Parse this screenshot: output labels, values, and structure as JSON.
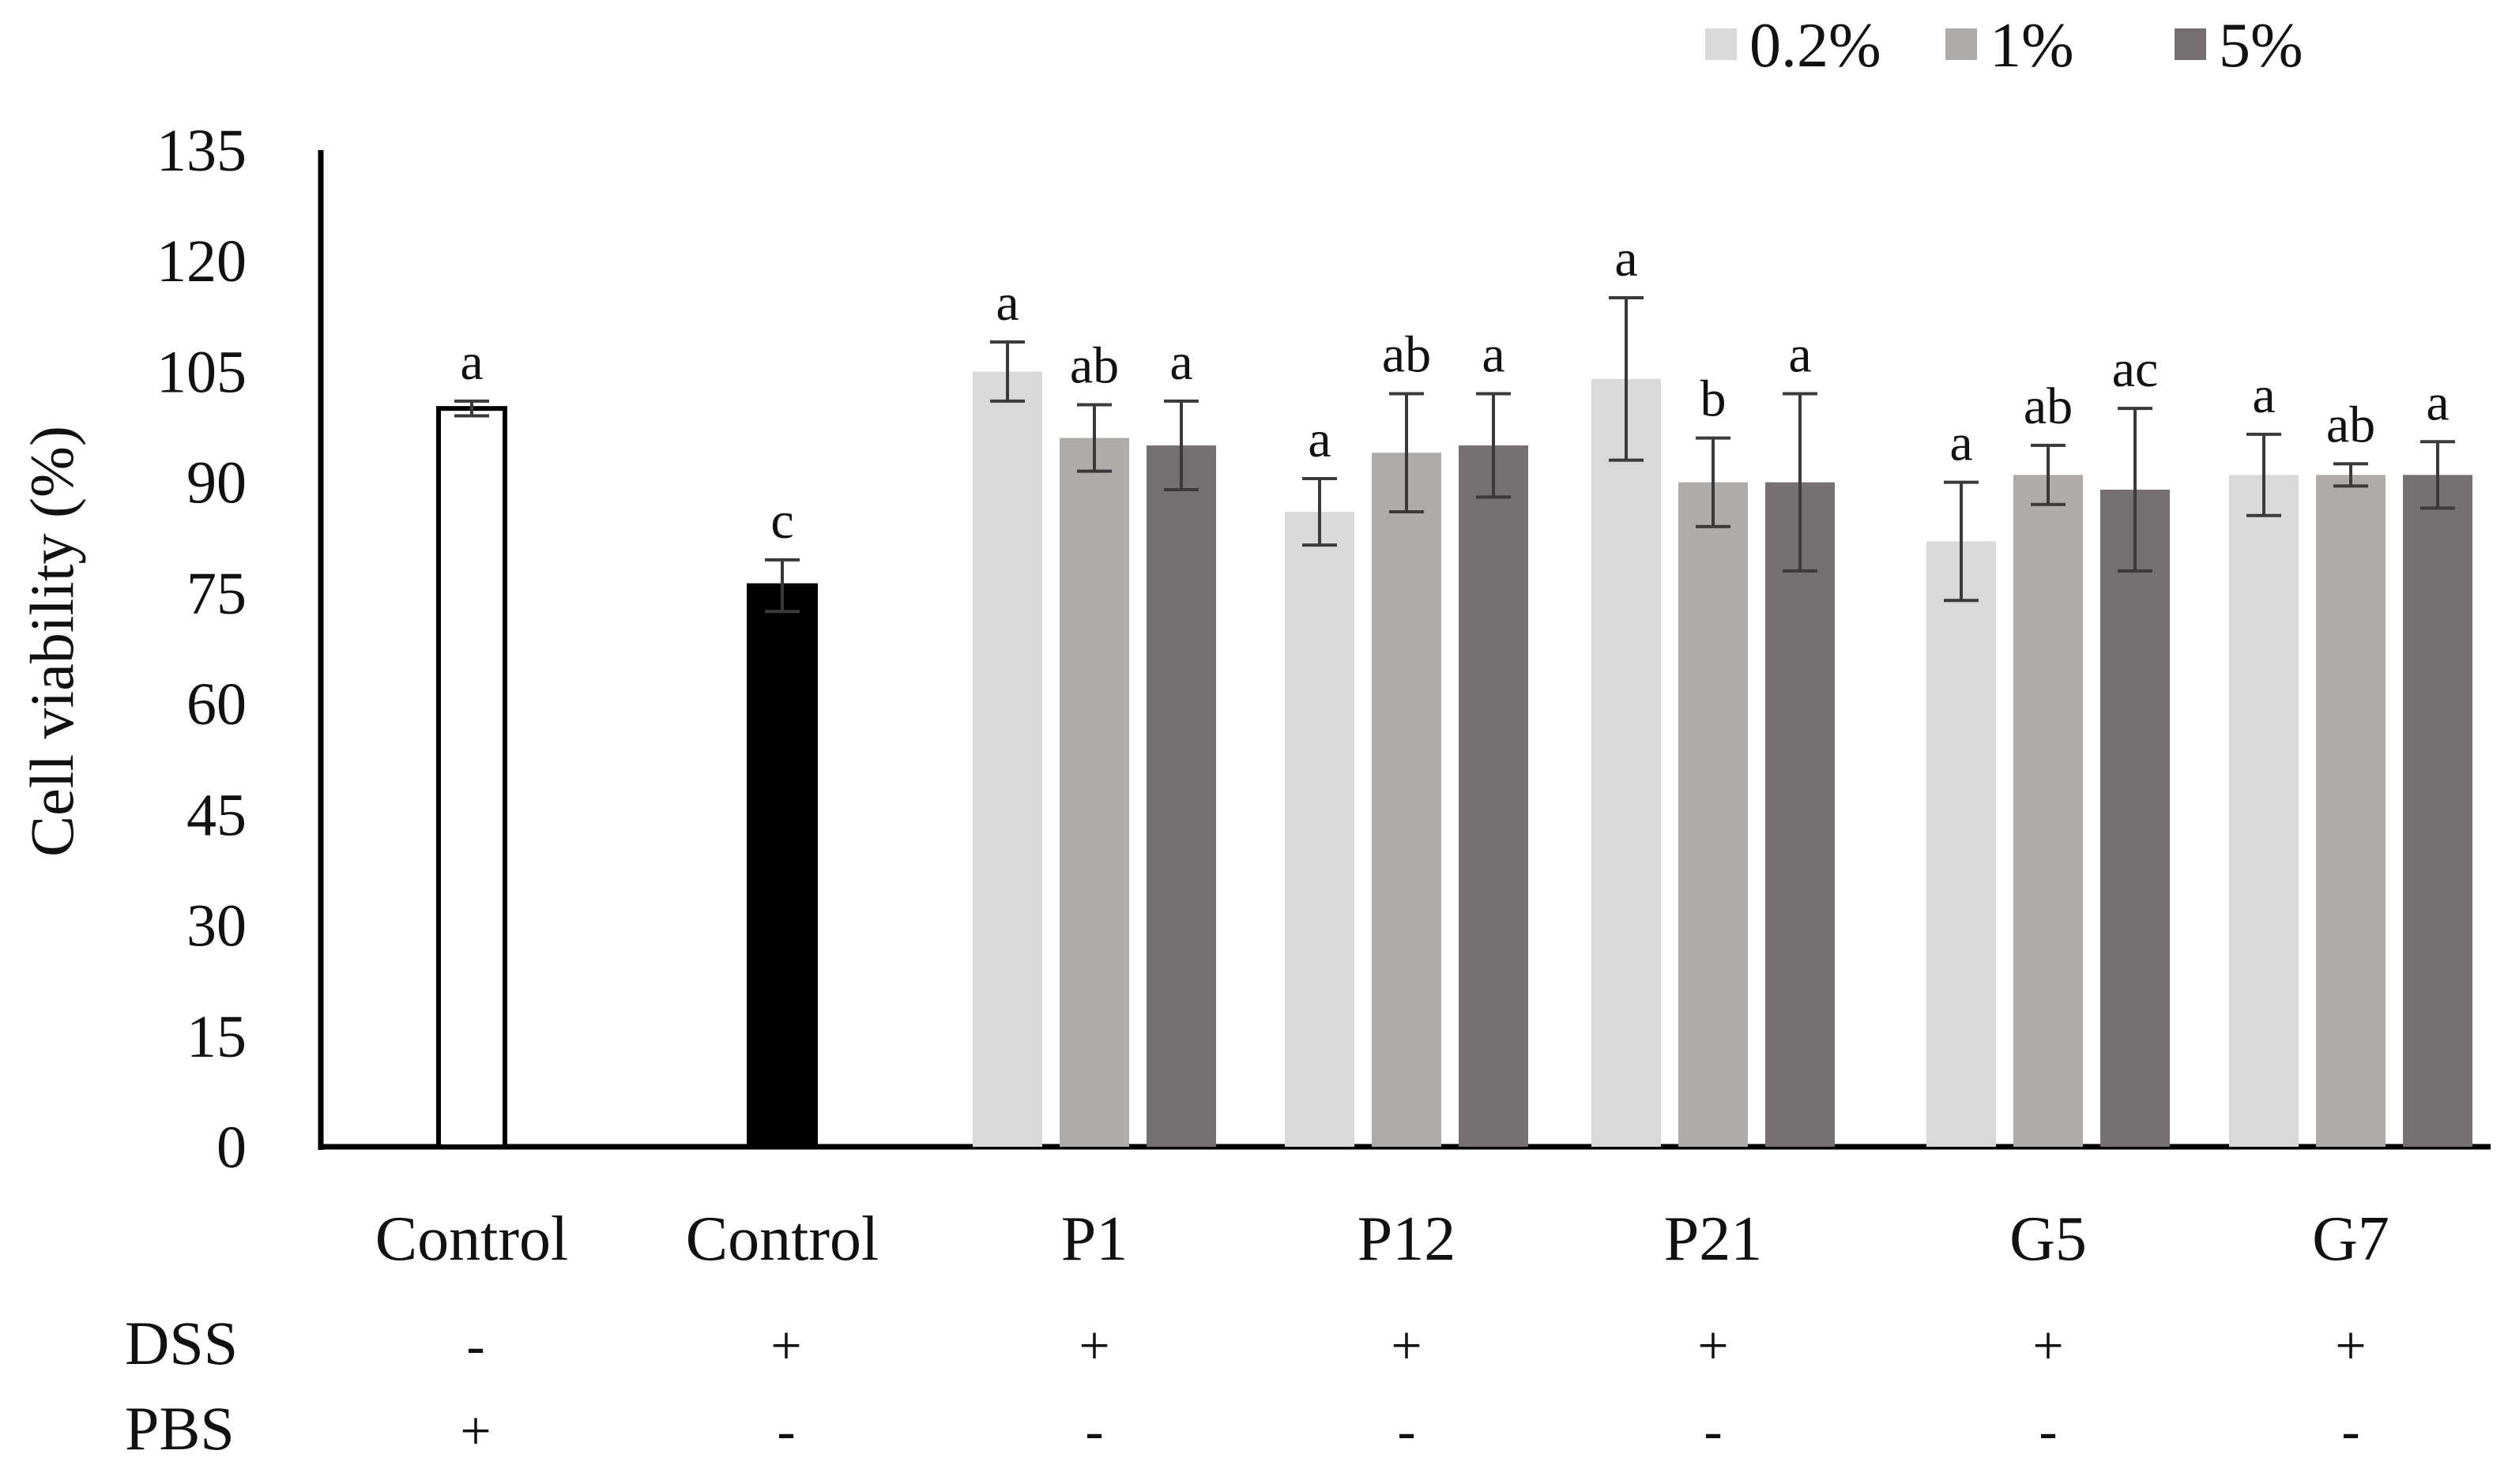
{
  "chart_data": {
    "type": "bar",
    "title": "",
    "xlabel": "",
    "ylabel": "Cell viability (%)",
    "ylim": [
      0,
      135
    ],
    "yticks": [
      0,
      15,
      30,
      45,
      60,
      75,
      90,
      105,
      120,
      135
    ],
    "grid": false,
    "legend_position": "top-right",
    "legend": [
      {
        "label": "0.2%",
        "color": "#d9d9d9"
      },
      {
        "label": "1%",
        "color": "#aeaba9"
      },
      {
        "label": "5%",
        "color": "#767070"
      }
    ],
    "controls": [
      {
        "category": "Control",
        "value": 100,
        "error": 1,
        "sig": "a",
        "fill": "#ffffff",
        "stroke": "#000000"
      },
      {
        "category": "Control",
        "value": 76,
        "error": 3.5,
        "sig": "c",
        "fill": "#000000",
        "stroke": "#000000"
      }
    ],
    "categories": [
      "P1",
      "P12",
      "P21",
      "G5",
      "G7"
    ],
    "series": [
      {
        "name": "0.2%",
        "color": "#d9d9d9",
        "values": [
          105,
          86,
          104,
          82,
          91
        ],
        "errors": [
          4,
          4.5,
          11,
          8,
          5.5
        ],
        "sig": [
          "a",
          "a",
          "a",
          "a",
          "a"
        ]
      },
      {
        "name": "1%",
        "color": "#aeaba9",
        "values": [
          96,
          94,
          90,
          91,
          91
        ],
        "errors": [
          4.5,
          8,
          6,
          4,
          1.5
        ],
        "sig": [
          "ab",
          "ab",
          "b",
          "ab",
          "ab"
        ]
      },
      {
        "name": "5%",
        "color": "#767070",
        "values": [
          95,
          95,
          90,
          89,
          91
        ],
        "errors": [
          6,
          7,
          12,
          11,
          4.5
        ],
        "sig": [
          "a",
          "a",
          "a",
          "ac",
          "a"
        ]
      }
    ],
    "treatment_table": {
      "rows": [
        {
          "label": "DSS",
          "values": [
            "-",
            "+",
            "+",
            "+",
            "+",
            "+",
            "+"
          ]
        },
        {
          "label": "PBS",
          "values": [
            "+",
            "-",
            "-",
            "-",
            "-",
            "-",
            "-"
          ]
        }
      ]
    }
  }
}
